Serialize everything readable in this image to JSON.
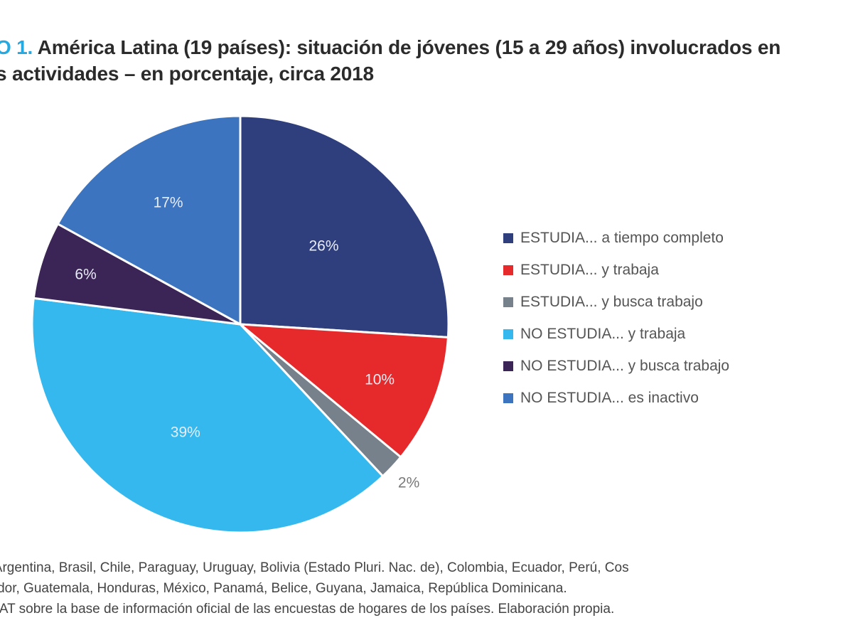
{
  "header": {
    "figure_number": "O 1.",
    "title_line1": "América Latina (19 países): situación de jóvenes (15 a 29 años) involucrados en",
    "title_line2": "s actividades – en porcentaje, circa 2018"
  },
  "chart_data": {
    "type": "pie",
    "title": "América Latina (19 países): situación de jóvenes (15 a 29 años) involucrados en … actividades – en porcentaje, circa 2018",
    "start": "12 o'clock, clockwise",
    "legend_position": "right",
    "slices": [
      {
        "label": "ESTUDIA... a tiempo completo",
        "value": 26,
        "display": "26%",
        "color": "#2f3f7e"
      },
      {
        "label": "ESTUDIA... y trabaja",
        "value": 10,
        "display": "10%",
        "color": "#e62a2c"
      },
      {
        "label": "ESTUDIA... y busca trabajo",
        "value": 2,
        "display": "2%",
        "color": "#77818b"
      },
      {
        "label": "NO ESTUDIA... y trabaja",
        "value": 39,
        "display": "39%",
        "color": "#35b8ee"
      },
      {
        "label": "NO ESTUDIA... y busca trabajo",
        "value": 6,
        "display": "6%",
        "color": "#3b2556"
      },
      {
        "label": "NO ESTUDIA... es inactivo",
        "value": 17,
        "display": "17%",
        "color": "#3d74c0"
      }
    ]
  },
  "notes": {
    "line1": "e Argentina, Brasil, Chile, Paraguay, Uruguay, Bolivia (Estado Pluri. Nac. de), Colombia, Ecuador, Perú, Cos",
    "line2": "vador, Guatemala, Honduras, México, Panamá, Belice, Guyana, Jamaica, República Dominicana.",
    "line3": "STAT sobre la base de información oficial de las encuestas de hogares de los países. Elaboración propia."
  }
}
